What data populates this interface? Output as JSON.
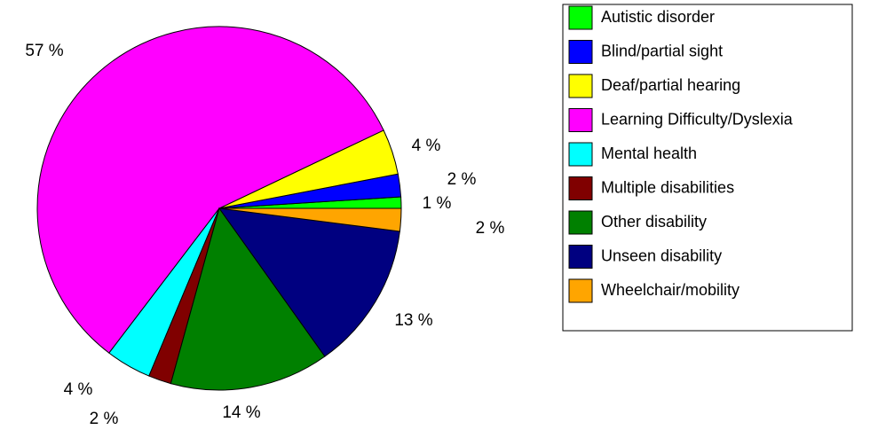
{
  "chart_data": {
    "type": "pie",
    "categories": [
      "Autistic disorder",
      "Blind/partial sight",
      "Deaf/partial hearing",
      "Learning Difficulty/Dyslexia",
      "Mental health",
      "Multiple disabilities",
      "Other disability",
      "Unseen disability",
      "Wheelchair/mobility"
    ],
    "values": [
      1,
      2,
      4,
      57,
      4,
      2,
      14,
      13,
      2
    ],
    "value_labels": [
      "1 %",
      "2 %",
      "4 %",
      "57 %",
      "4 %",
      "2 %",
      "14 %",
      "13 %",
      "2 %"
    ],
    "colors": [
      "#00ff00",
      "#0000ff",
      "#ffff00",
      "#ff00ff",
      "#00ffff",
      "#800000",
      "#008000",
      "#000080",
      "#ffa500"
    ],
    "legend": "right"
  }
}
